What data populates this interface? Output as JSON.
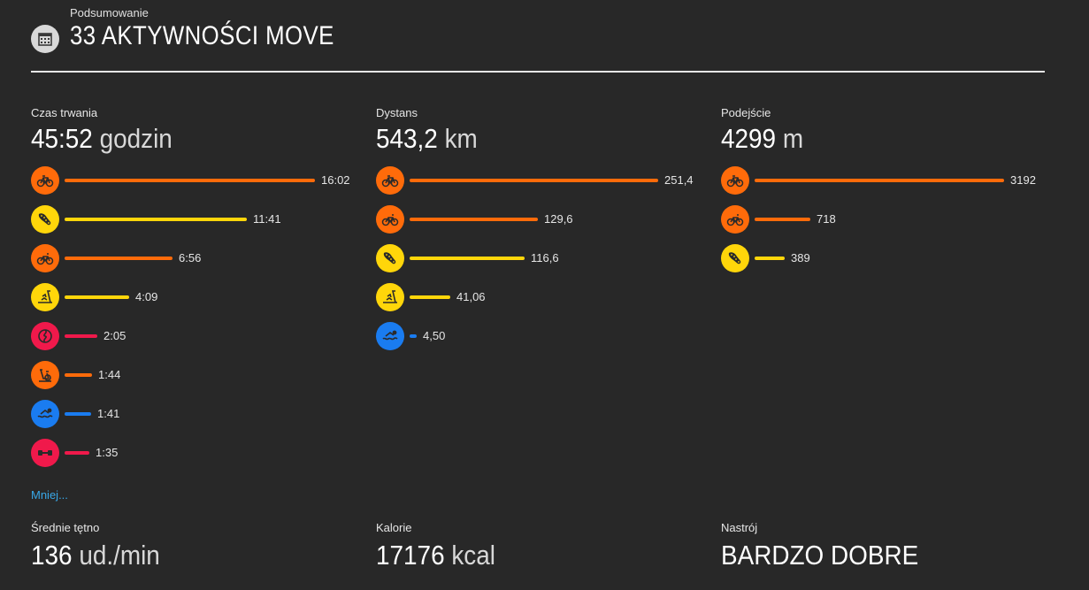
{
  "header": {
    "subtitle": "Podsumowanie",
    "title": "33 AKTYWNOŚCI MOVE",
    "icon": "calendar-icon"
  },
  "colors": {
    "orange": "#ff6b0a",
    "yellow": "#ffd60a",
    "red": "#f0194b",
    "blue": "#1a7cf0",
    "link": "#38a8e8"
  },
  "stats": [
    {
      "key": "duration",
      "label": "Czas trwania",
      "value": "45:52",
      "unit": "godzin",
      "max": 16.03,
      "rows": [
        {
          "icon": "road-bike-icon",
          "color": "orange",
          "text": "16:02",
          "amount": 16.03
        },
        {
          "icon": "running-shoe-icon",
          "color": "yellow",
          "text": "11:41",
          "amount": 11.68
        },
        {
          "icon": "cycling-icon",
          "color": "orange",
          "text": "6:56",
          "amount": 6.93
        },
        {
          "icon": "treadmill-icon",
          "color": "yellow",
          "text": "4:09",
          "amount": 4.15
        },
        {
          "icon": "yoga-icon",
          "color": "red",
          "text": "2:05",
          "amount": 2.08
        },
        {
          "icon": "indoor-cycling-icon",
          "color": "orange",
          "text": "1:44",
          "amount": 1.73
        },
        {
          "icon": "swimming-icon",
          "color": "blue",
          "text": "1:41",
          "amount": 1.68
        },
        {
          "icon": "strength-training-icon",
          "color": "red",
          "text": "1:35",
          "amount": 1.58
        }
      ]
    },
    {
      "key": "distance",
      "label": "Dystans",
      "value": "543,2",
      "unit": "km",
      "max": 251.4,
      "rows": [
        {
          "icon": "road-bike-icon",
          "color": "orange",
          "text": "251,4",
          "amount": 251.4
        },
        {
          "icon": "cycling-icon",
          "color": "orange",
          "text": "129,6",
          "amount": 129.6
        },
        {
          "icon": "running-shoe-icon",
          "color": "yellow",
          "text": "116,6",
          "amount": 116.6
        },
        {
          "icon": "treadmill-icon",
          "color": "yellow",
          "text": "41,06",
          "amount": 41.06
        },
        {
          "icon": "swimming-icon",
          "color": "blue",
          "text": "4,50",
          "amount": 4.5
        }
      ]
    },
    {
      "key": "ascent",
      "label": "Podejście",
      "value": "4299",
      "unit": "m",
      "max": 3192,
      "rows": [
        {
          "icon": "road-bike-icon",
          "color": "orange",
          "text": "3192",
          "amount": 3192
        },
        {
          "icon": "cycling-icon",
          "color": "orange",
          "text": "718",
          "amount": 718
        },
        {
          "icon": "running-shoe-icon",
          "color": "yellow",
          "text": "389",
          "amount": 389
        }
      ]
    }
  ],
  "less_link": "Mniej...",
  "footer": [
    {
      "key": "heart-rate",
      "label": "Średnie tętno",
      "value": "136",
      "unit": "ud./min"
    },
    {
      "key": "calories",
      "label": "Kalorie",
      "value": "17176",
      "unit": "kcal"
    },
    {
      "key": "mood",
      "label": "Nastrój",
      "value": "BARDZO DOBRE",
      "unit": ""
    }
  ]
}
